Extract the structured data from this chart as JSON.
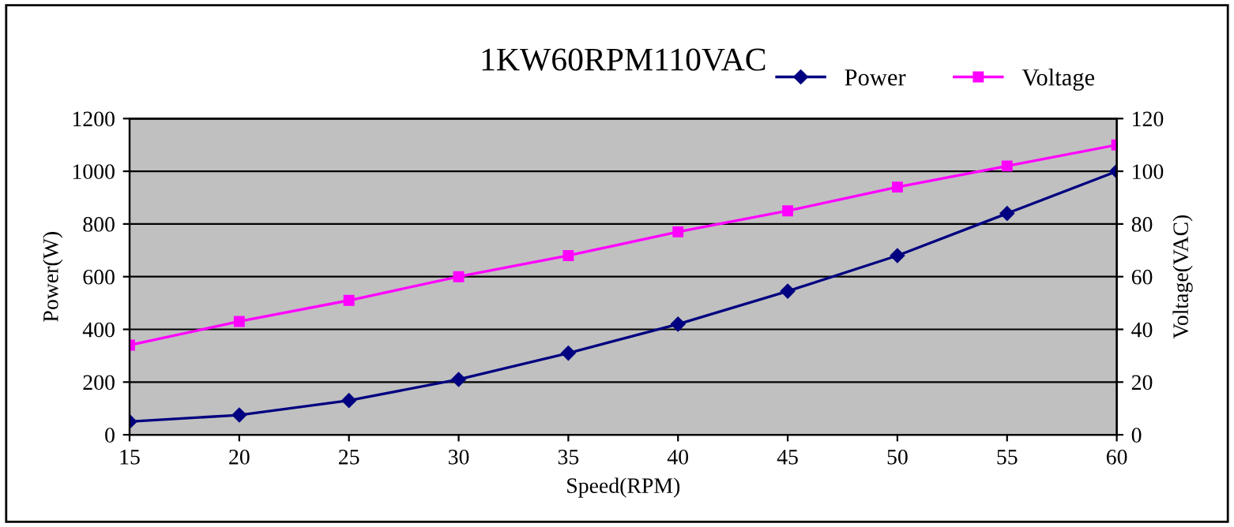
{
  "chart_data": {
    "type": "line",
    "title": "1KW60RPM110VAC",
    "xlabel": "Speed(RPM)",
    "ylabel": "Power(W)",
    "y2label": "Voltage(VAC)",
    "x": [
      15,
      20,
      25,
      30,
      35,
      40,
      45,
      50,
      55,
      60
    ],
    "series": [
      {
        "name": "Power",
        "color": "#000080",
        "marker": "diamond",
        "values": [
          50,
          75,
          130,
          210,
          310,
          420,
          545,
          680,
          840,
          1000
        ]
      },
      {
        "name": "Voltage",
        "color": "#ff00ff",
        "marker": "square",
        "axis": "y2",
        "values": [
          34,
          43,
          51,
          60,
          68,
          77,
          85,
          94,
          102,
          110
        ]
      }
    ],
    "xlim": [
      15,
      60
    ],
    "xticks": [
      15,
      20,
      25,
      30,
      35,
      40,
      45,
      50,
      55,
      60
    ],
    "ylim": [
      0,
      1200
    ],
    "yticks": [
      0,
      200,
      400,
      600,
      800,
      1000,
      1200
    ],
    "y2lim": [
      0,
      120
    ],
    "y2ticks": [
      0,
      20,
      40,
      60,
      80,
      100,
      120
    ],
    "grid": "y",
    "legend": "top right",
    "line_style": "solid"
  }
}
